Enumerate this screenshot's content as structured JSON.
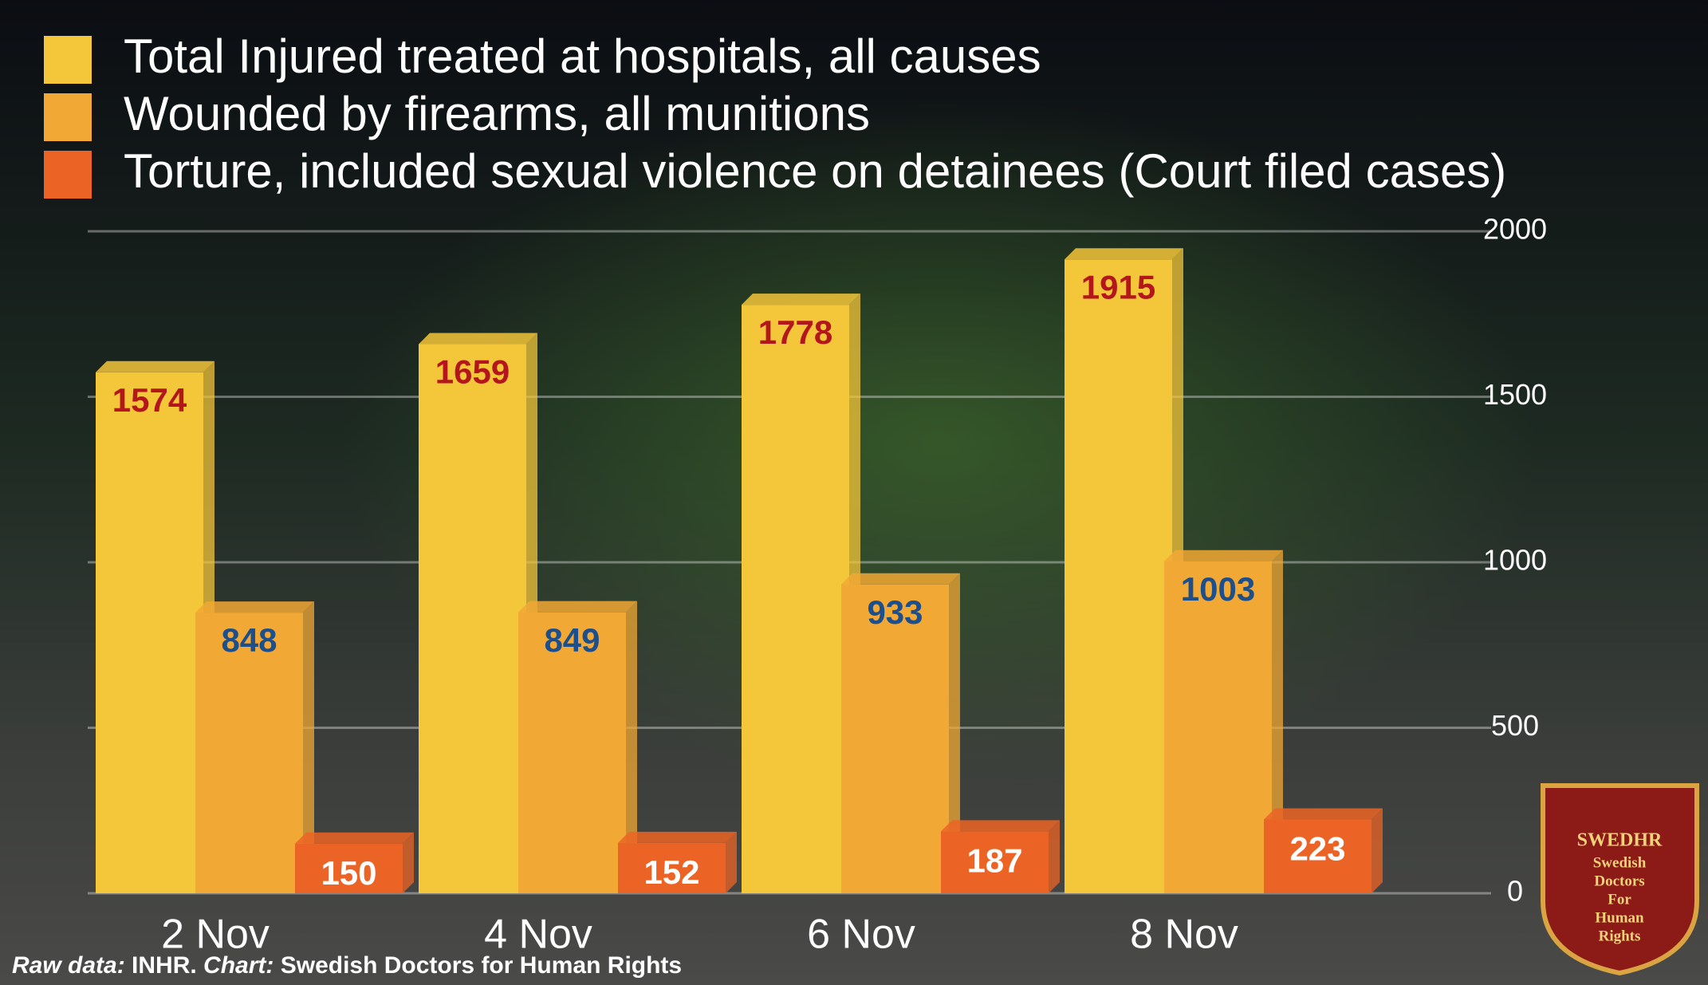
{
  "chart_data": {
    "type": "bar",
    "categories": [
      "2 Nov",
      "4 Nov",
      "6 Nov",
      "8 Nov"
    ],
    "series": [
      {
        "name": "Total Injured treated at hospitals, all causes",
        "color": "#f4c63a",
        "label_color": "#b3161b",
        "values": [
          1574,
          1659,
          1778,
          1915
        ]
      },
      {
        "name": "Wounded by firearms, all munitions",
        "color": "#f2a834",
        "label_color": "#1d4f8c",
        "values": [
          848,
          849,
          933,
          1003
        ]
      },
      {
        "name": "Torture, included sexual violence on detainees (Court filed cases)",
        "color": "#ec6425",
        "label_color": "#ffffff",
        "values": [
          150,
          152,
          187,
          223
        ]
      }
    ],
    "ylim": [
      0,
      2000
    ],
    "yticks": [
      0,
      500,
      1000,
      1500,
      2000
    ],
    "grid": true,
    "source": [
      {
        "text": "Raw data:",
        "italic": true
      },
      {
        "text": " INHR. ",
        "italic": false
      },
      {
        "text": "Chart:",
        "italic": true
      },
      {
        "text": " Swedish Doctors for Human Rights",
        "italic": false
      }
    ]
  },
  "logo": {
    "title": "SWEDHR",
    "lines": [
      "Swedish",
      "Doctors",
      "For",
      "Human",
      "Rights"
    ]
  }
}
